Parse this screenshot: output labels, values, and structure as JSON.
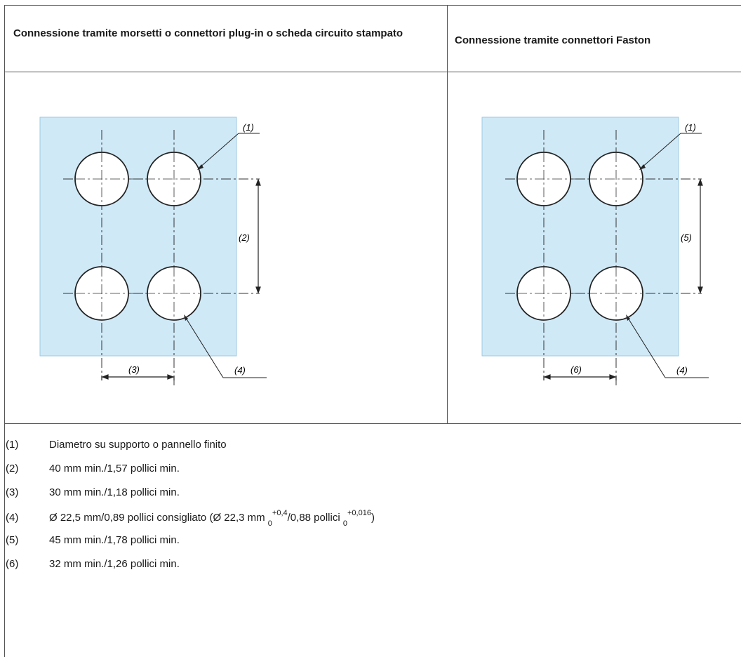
{
  "table": {
    "col1_header": "Connessione tramite morsetti o connettori plug-in o scheda circuito stampato",
    "col2_header": "Connessione tramite connettori Faston"
  },
  "diagram_left": {
    "callouts": [
      "(1)",
      "(2)",
      "(3)",
      "(4)"
    ]
  },
  "diagram_right": {
    "callouts": [
      "(1)",
      "(5)",
      "(6)",
      "(4)"
    ]
  },
  "colors": {
    "panel_fill": "#cfe9f7",
    "border": "#555555"
  },
  "notes": [
    {
      "num": "(1)",
      "text": "Diametro su supporto o pannello finito"
    },
    {
      "num": "(2)",
      "text": "40 mm min./1,57 pollici min."
    },
    {
      "num": "(3)",
      "text": "30 mm min./1,18 pollici min."
    },
    {
      "num": "(4)",
      "parts": {
        "a": "Ø 22,5 mm/0,89 pollici consigliato (Ø 22,3 mm ",
        "sub1": "0",
        "sup1": "+0,4",
        "b": "/0,88 pollici ",
        "sub2": "0",
        "sup2": "+0,016",
        "c": ")"
      }
    },
    {
      "num": "(5)",
      "text": "45 mm min./1,78 pollici min."
    },
    {
      "num": "(6)",
      "text": "32 mm min./1,26 pollici min."
    }
  ]
}
